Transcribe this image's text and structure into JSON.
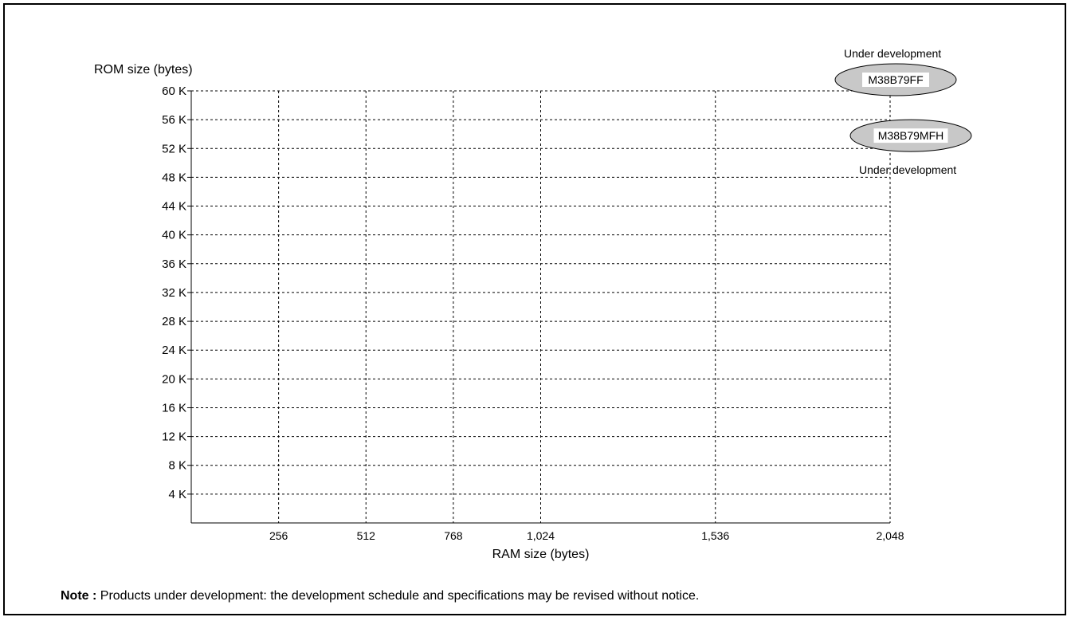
{
  "chart_data": {
    "type": "scatter",
    "title": "",
    "xlabel": "RAM size (bytes)",
    "ylabel": "ROM size (bytes)",
    "xlim": [
      0,
      2048
    ],
    "ylim": [
      0,
      60
    ],
    "x_ticks": [
      256,
      512,
      768,
      1024,
      1536,
      2048
    ],
    "x_tick_labels": [
      "256",
      "512",
      "768",
      "1,024",
      "1,536",
      "2,048"
    ],
    "y_ticks": [
      4,
      8,
      12,
      16,
      20,
      24,
      28,
      32,
      36,
      40,
      44,
      48,
      52,
      56,
      60
    ],
    "y_tick_labels": [
      "4 K",
      "8 K",
      "12 K",
      "16 K",
      "20 K",
      "24 K",
      "28 K",
      "32 K",
      "36 K",
      "40 K",
      "44 K",
      "48 K",
      "52 K",
      "56 K",
      "60 K"
    ],
    "grid": true,
    "points": [
      {
        "label": "M38B79FF",
        "x": 2048,
        "y": 60,
        "annotation": "Under development",
        "annotation_position": "above"
      },
      {
        "label": "M38B79MFH",
        "x": 2048,
        "y": 56,
        "annotation": "Under development",
        "annotation_position": "below"
      }
    ]
  },
  "note": {
    "label": "Note :",
    "text": " Products under development: the development schedule and specifications may be revised without notice."
  }
}
